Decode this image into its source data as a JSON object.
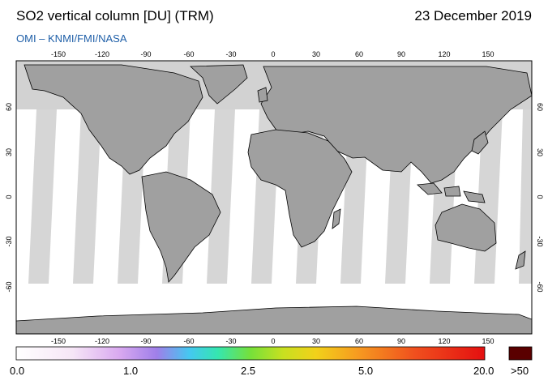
{
  "header": {
    "title": "SO2 vertical column [DU] (TRM)",
    "date": "23 December 2019",
    "source": "OMI  –  KNMI/FMI/NASA"
  },
  "map": {
    "lon_ticks": [
      "-150",
      "-120",
      "-90",
      "-60",
      "-30",
      "0",
      "30",
      "60",
      "90",
      "120",
      "150"
    ],
    "lat_ticks": [
      "60",
      "30",
      "0",
      "-30",
      "-60"
    ],
    "lat_ticks_right": [
      "60",
      "30",
      "0",
      "-30",
      "-60"
    ],
    "colors": {
      "land": "#a0a0a0",
      "swath_fill": "#d4d4d4",
      "no_data": "#ffffff",
      "coast": "#000000"
    }
  },
  "colorbar": {
    "labels": [
      "0.0",
      "1.0",
      "2.5",
      "5.0",
      "20.0"
    ],
    "overflow_label": ">50",
    "overflow_color": "#5a0000"
  }
}
